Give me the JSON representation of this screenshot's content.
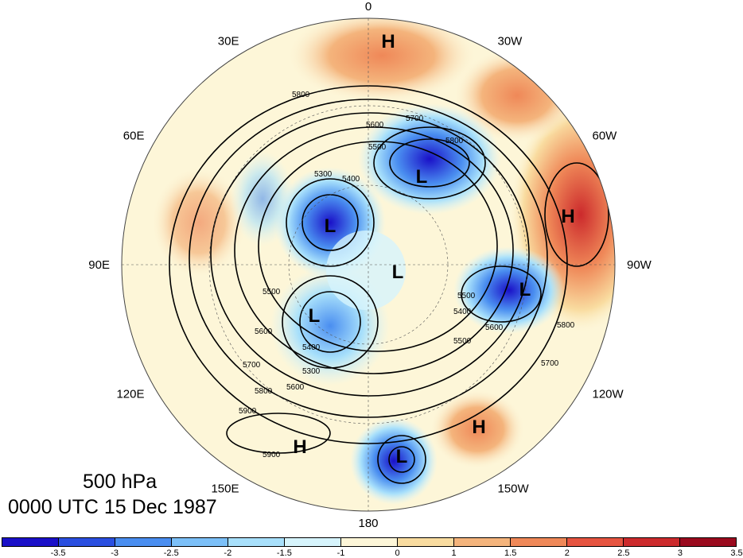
{
  "map": {
    "lon_labels": [
      {
        "text": "0",
        "deg": 0
      },
      {
        "text": "30W",
        "deg": 30
      },
      {
        "text": "60W",
        "deg": 60
      },
      {
        "text": "90W",
        "deg": 90
      },
      {
        "text": "120W",
        "deg": 120
      },
      {
        "text": "150W",
        "deg": 150
      },
      {
        "text": "180",
        "deg": 180
      },
      {
        "text": "150E",
        "deg": 210
      },
      {
        "text": "120E",
        "deg": 240
      },
      {
        "text": "90E",
        "deg": 270
      },
      {
        "text": "60E",
        "deg": 300
      },
      {
        "text": "30E",
        "deg": 330
      }
    ],
    "contour_labels": [
      "5800",
      "5700",
      "5600",
      "5500",
      "5400",
      "5300",
      "5500",
      "5600",
      "5700",
      "5800",
      "5900",
      "5900",
      "5800",
      "5500",
      "5400",
      "5600",
      "5700",
      "5800",
      "5500",
      "5600",
      "5400",
      "5300"
    ],
    "pressure_centers": [
      "H",
      "H",
      "H",
      "H",
      "L",
      "L",
      "L",
      "L",
      "L",
      "L"
    ]
  },
  "title": {
    "level": "500 hPa",
    "time": "0000 UTC 15 Dec 1987"
  },
  "colorbar": {
    "colors": [
      "#1a10c8",
      "#2a4fe0",
      "#4a8ef0",
      "#7cc0f8",
      "#a8e0fb",
      "#d6f4fc",
      "#fdf6d8",
      "#f9dca0",
      "#f4b47c",
      "#ef8858",
      "#e65440",
      "#cc2a2c",
      "#9a0a1e"
    ],
    "tick_labels": [
      "-3.5",
      "-3",
      "-2.5",
      "-2",
      "-1.5",
      "-1",
      "0",
      "1",
      "1.5",
      "2",
      "2.5",
      "3",
      "3.5"
    ]
  }
}
